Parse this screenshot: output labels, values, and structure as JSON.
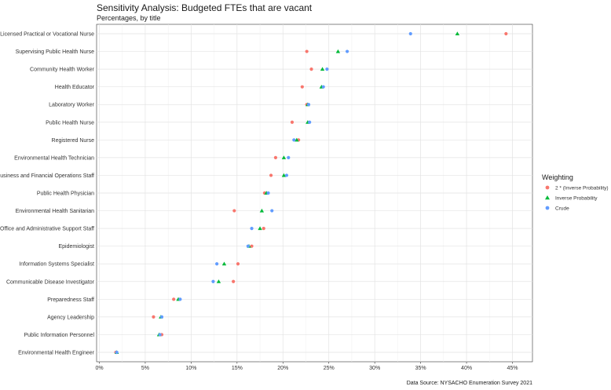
{
  "chart_data": {
    "type": "scatter",
    "title": "Sensitivity Analysis: Budgeted FTEs that are vacant",
    "subtitle": "Percentages, by title",
    "caption": "Data Source: NYSACHO Enumeration Survey 2021",
    "xlim": [
      0,
      46
    ],
    "x_ticks": [
      0,
      5,
      10,
      15,
      20,
      25,
      30,
      35,
      40,
      45
    ],
    "x_tick_labels": [
      "0%",
      "5%",
      "10%",
      "15%",
      "20%",
      "25%",
      "30%",
      "35%",
      "40%",
      "45%"
    ],
    "grid": true,
    "legend_position": "right",
    "legend_title": "Weighting",
    "categories": [
      "Licensed Practical or Vocational Nurse",
      "Supervising Public Health Nurse",
      "Community Health Worker",
      "Health Educator",
      "Laboratory Worker",
      "Public Health Nurse",
      "Registered Nurse",
      "Environmental Health Technician",
      "Business and Financial Operations Staff",
      "Public Health Physician",
      "Environmental Health Sanitarian",
      "Office and Administrative Support Staff",
      "Epidemiologist",
      "Information Systems Specialist",
      "Communicable Disease Investigator",
      "Preparedness Staff",
      "Agency Leadership",
      "Public Information Personnel",
      "Environmental Health Engineer"
    ],
    "series": [
      {
        "name": "2 * (Inverse Probability)",
        "color": "#F8766D",
        "shape": "circle",
        "values": [
          44.3,
          22.6,
          23.1,
          22.1,
          22.6,
          21.0,
          21.7,
          19.2,
          18.7,
          18.0,
          14.7,
          17.9,
          16.6,
          15.1,
          14.6,
          8.1,
          5.9,
          6.8,
          1.8
        ]
      },
      {
        "name": "Inverse Probability",
        "color": "#00BA38",
        "shape": "triangle",
        "values": [
          39.0,
          26.0,
          24.3,
          24.2,
          22.7,
          22.7,
          21.5,
          20.1,
          20.1,
          18.2,
          17.7,
          17.5,
          16.3,
          13.6,
          13.0,
          8.6,
          6.7,
          6.5,
          1.9
        ]
      },
      {
        "name": "Crude",
        "color": "#619CFF",
        "shape": "circle",
        "values": [
          33.9,
          27.0,
          24.8,
          24.4,
          22.8,
          22.9,
          21.2,
          20.6,
          20.4,
          18.4,
          18.8,
          16.6,
          16.2,
          12.8,
          12.4,
          8.8,
          6.8,
          6.6,
          1.9
        ]
      }
    ]
  }
}
